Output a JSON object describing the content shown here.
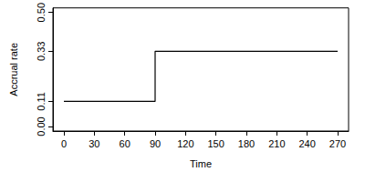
{
  "chart_data": {
    "type": "line",
    "x_label": "Time",
    "y_label": "Accrual rate",
    "x": [
      0,
      90,
      90,
      270
    ],
    "values": [
      0.11,
      0.11,
      0.33,
      0.33
    ],
    "color": "#000000",
    "xlim": [
      -10.8,
      280.8
    ],
    "xticks": [
      0,
      30,
      60,
      90,
      120,
      150,
      180,
      210,
      240,
      270
    ],
    "ylim": [
      -0.02,
      0.52
    ],
    "yticks": [
      {
        "value": 0,
        "label": "0.00"
      },
      0.11,
      0.33,
      {
        "value": 0.5,
        "label": "0.50"
      }
    ],
    "grid": false
  }
}
